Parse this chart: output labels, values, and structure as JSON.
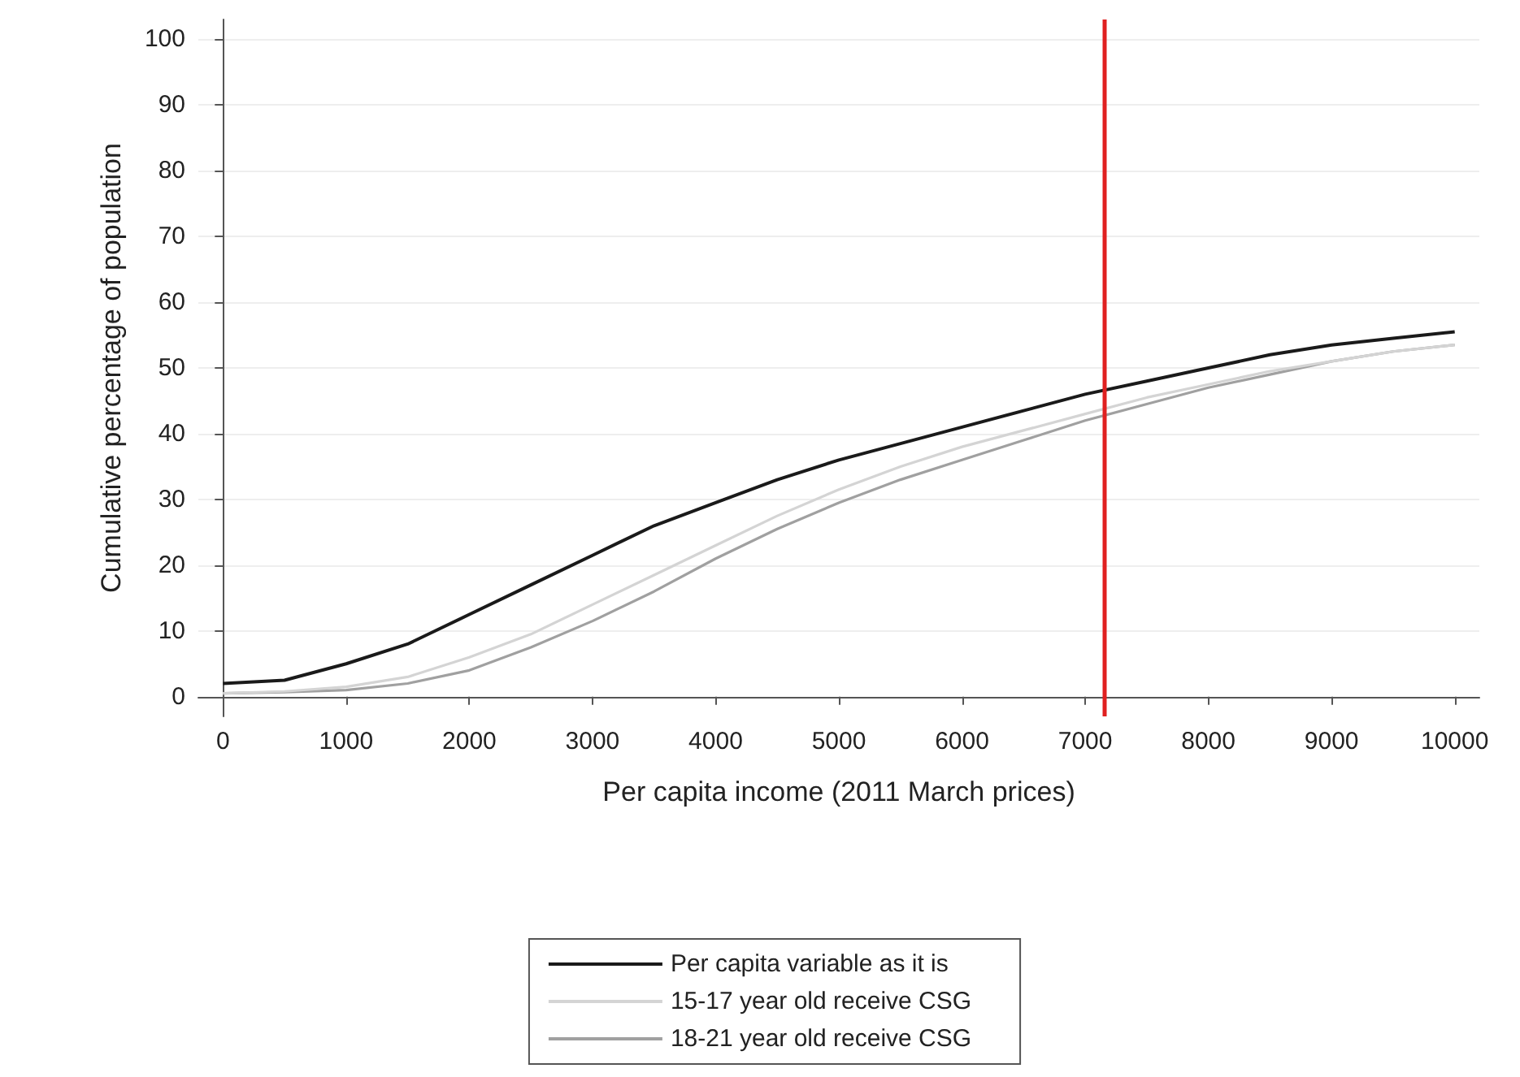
{
  "chart_data": {
    "type": "line",
    "xlabel": "Per capita income (2011 March prices)",
    "ylabel": "Cumulative percentage of population",
    "x": [
      0,
      500,
      1000,
      1500,
      2000,
      2500,
      3000,
      3500,
      4000,
      4500,
      5000,
      5500,
      6000,
      6500,
      7000,
      7500,
      8000,
      8500,
      9000,
      9500,
      10000
    ],
    "series": [
      {
        "name": "Per capita variable as it is",
        "color": "#1a1a1a",
        "values": [
          2,
          2.5,
          5,
          8,
          12.5,
          17,
          21.5,
          26,
          29.5,
          33,
          36,
          38.5,
          41,
          43.5,
          46,
          48,
          50,
          52,
          53.5,
          54.5,
          55.5
        ]
      },
      {
        "name": "15-17 year old receive CSG",
        "color": "#d4d4d4",
        "values": [
          0.5,
          0.8,
          1.5,
          3,
          6,
          9.5,
          14,
          18.5,
          23,
          27.5,
          31.5,
          35,
          38,
          40.5,
          43,
          45.5,
          47.5,
          49.5,
          51,
          52.5,
          53.5
        ]
      },
      {
        "name": "18-21 year old receive CSG",
        "color": "#a0a0a0",
        "values": [
          0.5,
          0.7,
          1,
          2,
          4,
          7.5,
          11.5,
          16,
          21,
          25.5,
          29.5,
          33,
          36,
          39,
          42,
          44.5,
          47,
          49,
          51,
          52.5,
          53.5
        ]
      }
    ],
    "xlim": [
      -200,
      10200
    ],
    "xticks": [
      0,
      1000,
      2000,
      3000,
      4000,
      5000,
      6000,
      7000,
      8000,
      9000,
      10000
    ],
    "ylim": [
      -3,
      103
    ],
    "yticks": [
      0,
      10,
      20,
      30,
      40,
      50,
      60,
      70,
      80,
      90,
      100
    ],
    "ref_lines": [
      {
        "axis": "x",
        "value": 7150,
        "color": "#e02020"
      }
    ],
    "grid": "y",
    "legend": "bottom",
    "marker": "none",
    "line_style": "solid"
  }
}
